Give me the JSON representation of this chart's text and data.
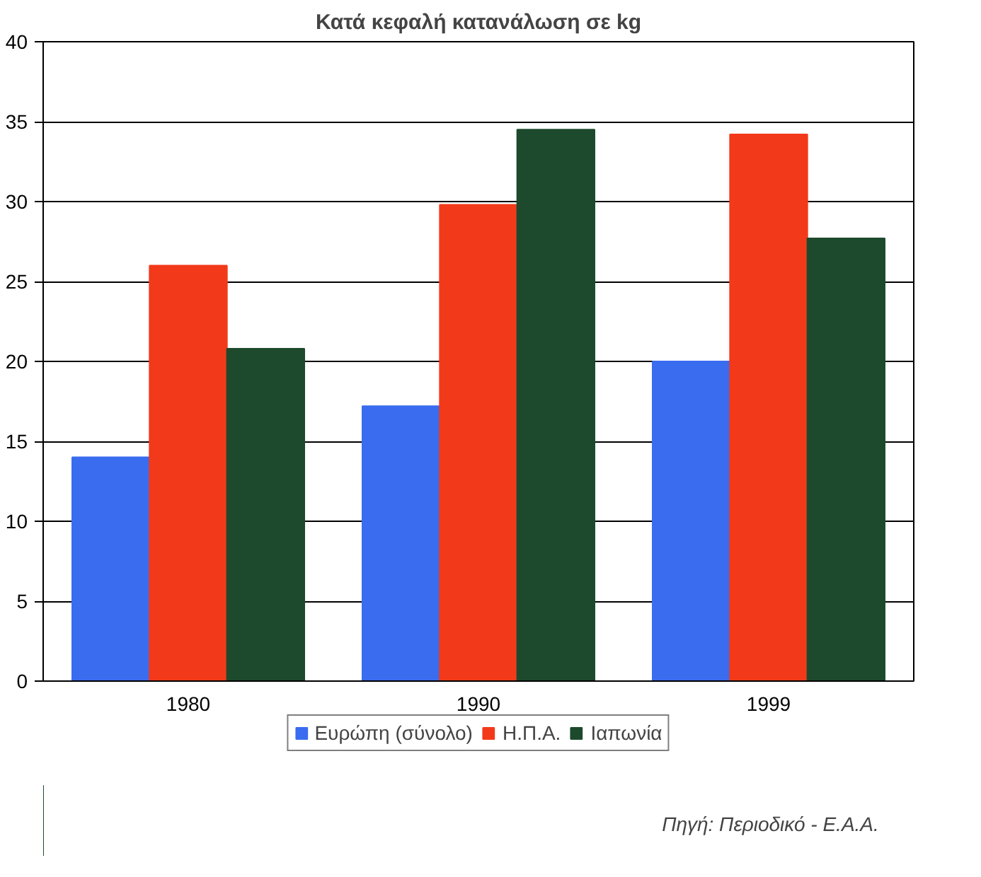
{
  "chart_data": {
    "type": "bar",
    "title": "Κατά κεφαλή κατανάλωση σε kg",
    "categories": [
      "1980",
      "1990",
      "1999"
    ],
    "series": [
      {
        "name": "Ευρώπη (σύνολο)",
        "color": "#3a6cf0",
        "values": [
          14,
          17.2,
          20
        ]
      },
      {
        "name": "Η.Π.Α.",
        "color": "#f23a1a",
        "values": [
          26,
          29.8,
          34.2
        ]
      },
      {
        "name": "Ιαπωνία",
        "color": "#1d4a2c",
        "values": [
          20.8,
          34.5,
          27.7
        ]
      }
    ],
    "ylim": [
      0,
      40
    ],
    "yticks": [
      0,
      5,
      10,
      15,
      20,
      25,
      30,
      35,
      40
    ],
    "grid": "y",
    "legend": "bottom",
    "annotations": [
      "Πηγή: Περιοδικό - Ε.Α.Α."
    ]
  }
}
